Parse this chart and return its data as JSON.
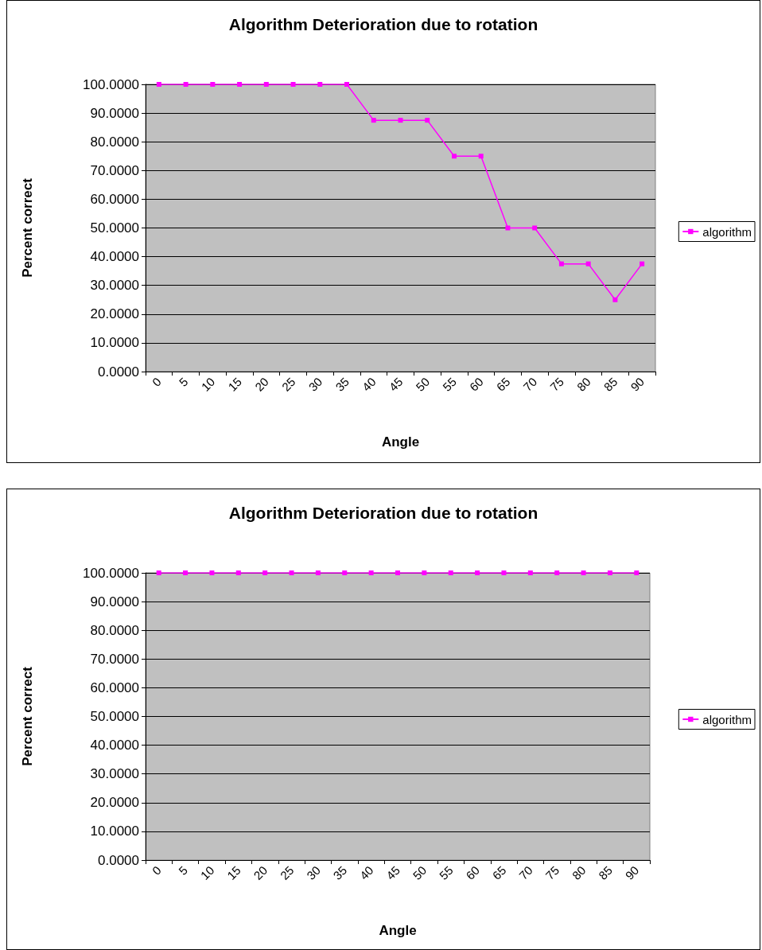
{
  "chart_data": [
    {
      "type": "line",
      "title": "Algorithm Deterioration due to rotation",
      "xlabel": "Angle",
      "ylabel": "Percent correct",
      "categories": [
        "0",
        "5",
        "10",
        "15",
        "20",
        "25",
        "30",
        "35",
        "40",
        "45",
        "50",
        "55",
        "60",
        "65",
        "70",
        "75",
        "80",
        "85",
        "90"
      ],
      "series": [
        {
          "name": "algorithm",
          "color": "#ff00ff",
          "values": [
            100,
            100,
            100,
            100,
            100,
            100,
            100,
            100,
            87.5,
            87.5,
            87.5,
            75,
            75,
            50,
            50,
            37.5,
            37.5,
            25,
            37.5
          ]
        }
      ],
      "ylim": [
        0,
        100
      ],
      "yticks": [
        {
          "value": 0,
          "label": "0.0000"
        },
        {
          "value": 10,
          "label": "10.0000"
        },
        {
          "value": 20,
          "label": "20.0000"
        },
        {
          "value": 30,
          "label": "30.0000"
        },
        {
          "value": 40,
          "label": "40.0000"
        },
        {
          "value": 50,
          "label": "50.0000"
        },
        {
          "value": 60,
          "label": "60.0000"
        },
        {
          "value": 70,
          "label": "70.0000"
        },
        {
          "value": 80,
          "label": "80.0000"
        },
        {
          "value": 90,
          "label": "90.0000"
        },
        {
          "value": 100,
          "label": "100.0000"
        }
      ],
      "grid": "y",
      "legend": "right",
      "marker": "square",
      "line_style": "solid"
    },
    {
      "type": "line",
      "title": "Algorithm Deterioration due to rotation",
      "xlabel": "Angle",
      "ylabel": "Percent correct",
      "categories": [
        "0",
        "5",
        "10",
        "15",
        "20",
        "25",
        "30",
        "35",
        "40",
        "45",
        "50",
        "55",
        "60",
        "65",
        "70",
        "75",
        "80",
        "85",
        "90"
      ],
      "series": [
        {
          "name": "algorithm",
          "color": "#ff00ff",
          "values": [
            100,
            100,
            100,
            100,
            100,
            100,
            100,
            100,
            100,
            100,
            100,
            100,
            100,
            100,
            100,
            100,
            100,
            100,
            100
          ]
        }
      ],
      "ylim": [
        0,
        100
      ],
      "yticks": [
        {
          "value": 0,
          "label": "0.0000"
        },
        {
          "value": 10,
          "label": "10.0000"
        },
        {
          "value": 20,
          "label": "20.0000"
        },
        {
          "value": 30,
          "label": "30.0000"
        },
        {
          "value": 40,
          "label": "40.0000"
        },
        {
          "value": 50,
          "label": "50.0000"
        },
        {
          "value": 60,
          "label": "60.0000"
        },
        {
          "value": 70,
          "label": "70.0000"
        },
        {
          "value": 80,
          "label": "80.0000"
        },
        {
          "value": 90,
          "label": "90.0000"
        },
        {
          "value": 100,
          "label": "100.0000"
        }
      ],
      "grid": "y",
      "legend": "right",
      "marker": "square",
      "line_style": "solid"
    }
  ]
}
